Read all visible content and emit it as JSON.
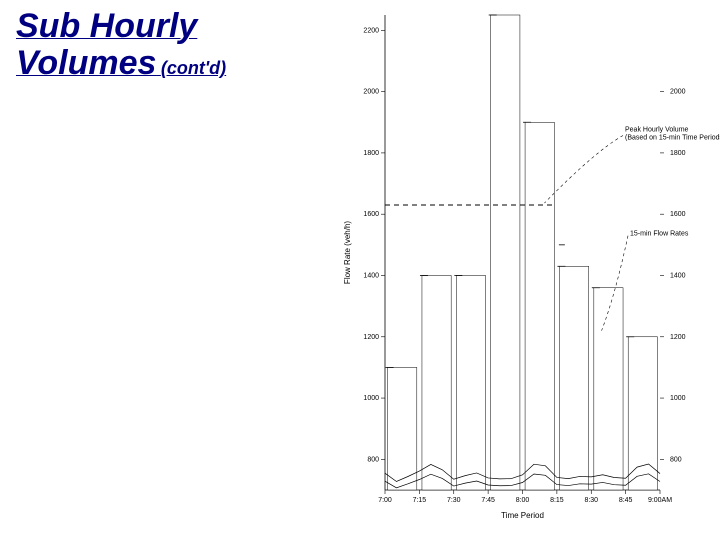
{
  "title": {
    "line1": "Sub Hourly",
    "line2": "Volumes",
    "suffix": "(cont'd)",
    "color": "#000080",
    "main_fontsize": 34,
    "sub_fontsize": 18,
    "italic": true,
    "underline": true
  },
  "chart": {
    "type": "bar",
    "background_color": "#ffffff",
    "bar_fill": "#ffffff",
    "bar_stroke": "#000000",
    "bar_stroke_width": 0.5,
    "line_color": "#000000",
    "line_width": 1,
    "axis_color": "#000000",
    "tick_font_size": 7,
    "label_font_size": 8,
    "x_label": "Time Period",
    "y_label_left": "Flow Rate (veh/h)",
    "x_categories": [
      "7:00",
      "7:15",
      "7:30",
      "7:45",
      "8:00",
      "8:15",
      "8:30",
      "8:45",
      "9:00AM"
    ],
    "y_left_ticks": [
      800,
      1000,
      1200,
      1400,
      1600,
      1800,
      2000,
      2200
    ],
    "y_right_ticks": [
      800,
      1000,
      1200,
      1400,
      1600,
      1800,
      2000
    ],
    "y_min": 700,
    "y_max": 2250,
    "bar_values": [
      1100,
      1400,
      1400,
      2250,
      1900,
      1430,
      1360,
      1200
    ],
    "peak_hourly_volume_value": 1630,
    "annotations": {
      "peak_line1": "Peak Hourly Volume",
      "peak_line2": "(Based on 15-min Time Periods)",
      "flow_rate_label": "15-min Flow Rates"
    },
    "wave_baseline": 745,
    "wave_amplitude": 12
  }
}
